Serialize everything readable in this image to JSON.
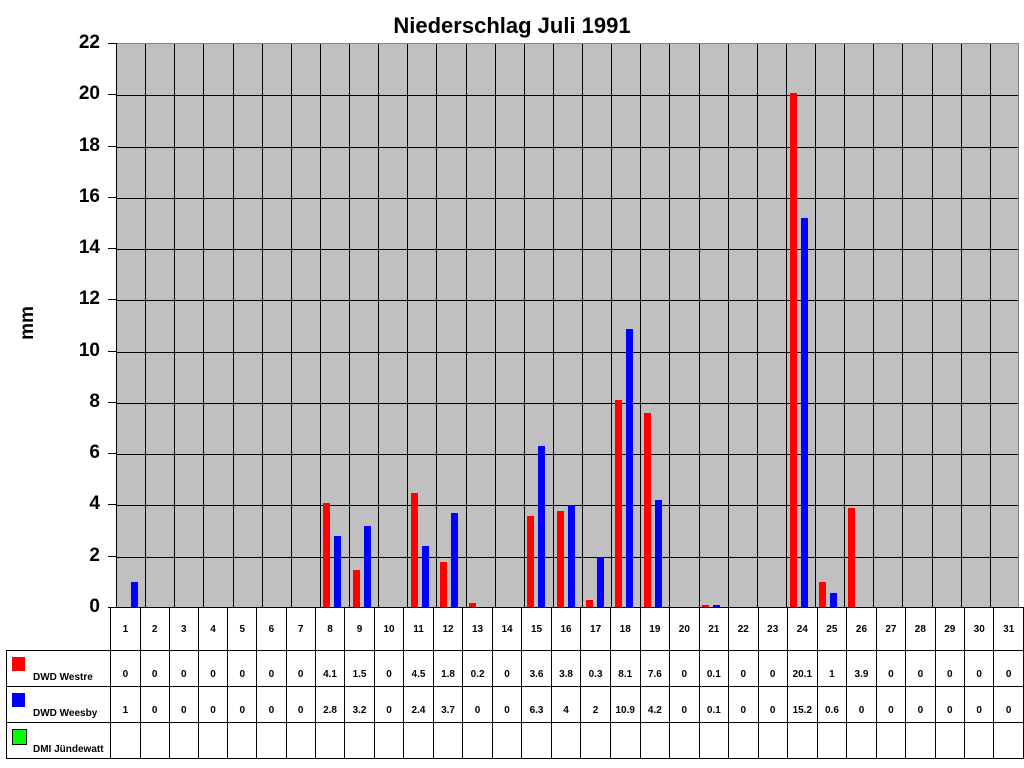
{
  "chart_data": {
    "type": "bar",
    "title": "Niederschlag Juli 1991",
    "xlabel": "",
    "ylabel": "mm",
    "ylim": [
      0,
      22
    ],
    "yticks": [
      0,
      2,
      4,
      6,
      8,
      10,
      12,
      14,
      16,
      18,
      20,
      22
    ],
    "grid": true,
    "legend_position": "data-table-left",
    "categories": [
      "1",
      "2",
      "3",
      "4",
      "5",
      "6",
      "7",
      "8",
      "9",
      "10",
      "11",
      "12",
      "13",
      "14",
      "15",
      "16",
      "17",
      "18",
      "19",
      "20",
      "21",
      "22",
      "23",
      "24",
      "25",
      "26",
      "27",
      "28",
      "29",
      "30",
      "31"
    ],
    "series": [
      {
        "name": "DWD Westre",
        "color": "#ff0000",
        "values": [
          0,
          0,
          0,
          0,
          0,
          0,
          0,
          4.1,
          1.5,
          0,
          4.5,
          1.8,
          0.2,
          0,
          3.6,
          3.8,
          0.3,
          8.1,
          7.6,
          0,
          0.1,
          0,
          0,
          20.1,
          1,
          3.9,
          0,
          0,
          0,
          0,
          0
        ]
      },
      {
        "name": "DWD Weesby",
        "color": "#0000ff",
        "values": [
          1,
          0,
          0,
          0,
          0,
          0,
          0,
          2.8,
          3.2,
          0,
          2.4,
          3.7,
          0,
          0,
          6.3,
          4,
          2,
          10.9,
          4.2,
          0,
          0.1,
          0,
          0,
          15.2,
          0.6,
          0,
          0,
          0,
          0,
          0,
          0
        ]
      },
      {
        "name": "DMI Jündewatt",
        "color": "#00ff00",
        "values": [
          null,
          null,
          null,
          null,
          null,
          null,
          null,
          null,
          null,
          null,
          null,
          null,
          null,
          null,
          null,
          null,
          null,
          null,
          null,
          null,
          null,
          null,
          null,
          null,
          null,
          null,
          null,
          null,
          null,
          null,
          null
        ]
      }
    ]
  }
}
